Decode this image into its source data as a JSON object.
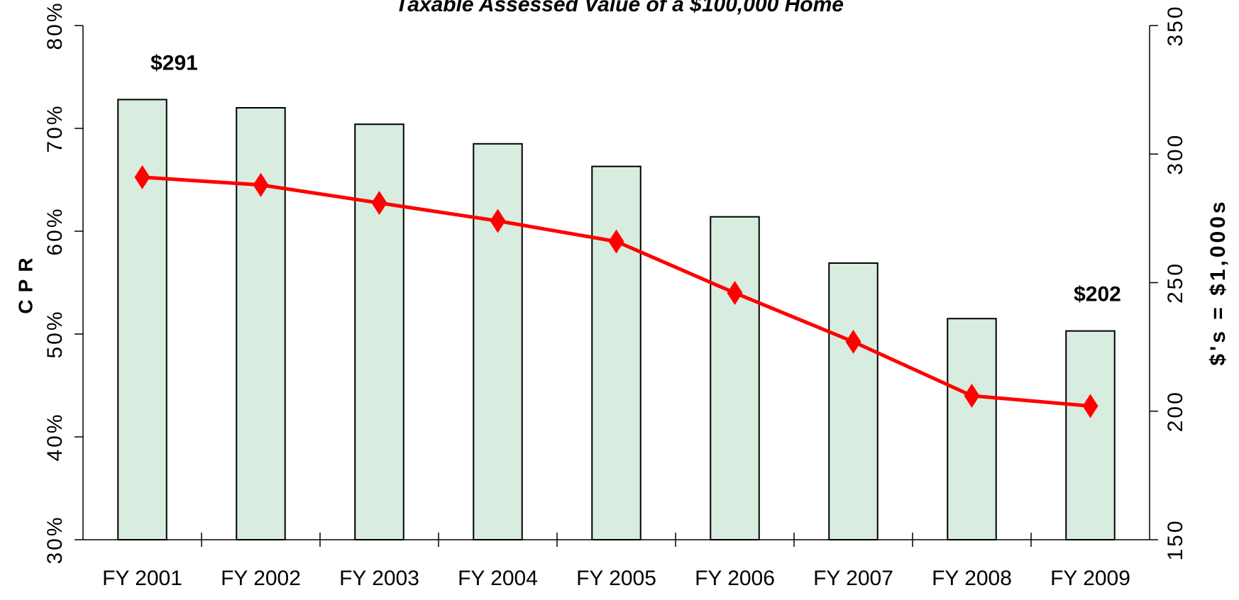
{
  "chart_data": {
    "type": "bar-line",
    "title": "Taxable Assessed Value of a $100,000 Home",
    "y_label": "CPR",
    "y2_label": "$'s = $1,000s",
    "categories": [
      "FY 2001",
      "FY 2002",
      "FY 2003",
      "FY 2004",
      "FY 2005",
      "FY 2006",
      "FY 2007",
      "FY 2008",
      "FY 2009"
    ],
    "series": [
      {
        "type": "bar",
        "color": "#d8eddf",
        "values": [
          72.8,
          72.0,
          70.4,
          68.5,
          66.3,
          61.4,
          56.9,
          51.5,
          50.3
        ]
      },
      {
        "type": "line",
        "axis": "y2",
        "color": "#ff0000",
        "values": [
          291,
          288,
          281,
          274,
          266,
          246,
          227,
          206,
          202
        ],
        "value_labels": [
          "$291",
          null,
          null,
          null,
          null,
          null,
          null,
          null,
          "$202"
        ]
      }
    ],
    "ylim": [
      30,
      80
    ],
    "yticks": [
      {
        "value": 30,
        "label": "30%"
      },
      {
        "value": 40,
        "label": "40%"
      },
      {
        "value": 50,
        "label": "50%"
      },
      {
        "value": 60,
        "label": "60%"
      },
      {
        "value": 70,
        "label": "70%"
      },
      {
        "value": 80,
        "label": "80%"
      }
    ],
    "y2lim": [
      150,
      350
    ],
    "y2ticks": [
      150,
      200,
      250,
      300,
      350
    ],
    "grid": false
  }
}
